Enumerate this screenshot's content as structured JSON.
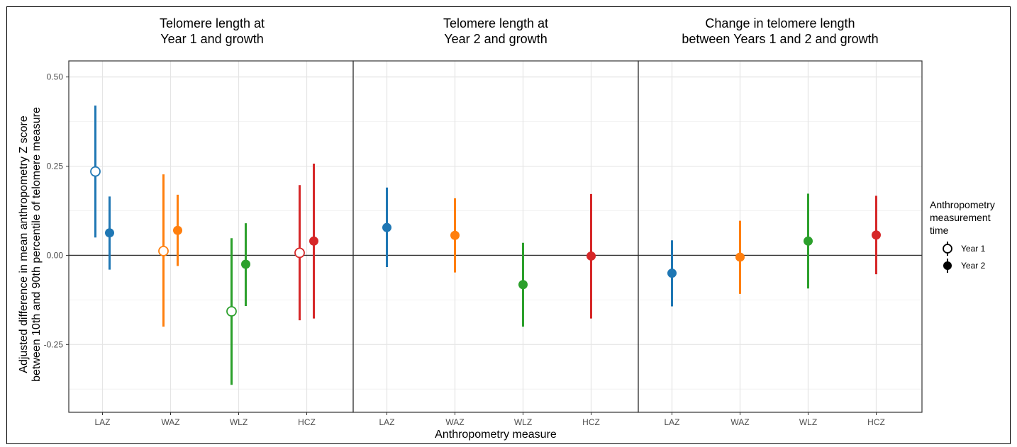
{
  "chart_data": {
    "type": "scatter",
    "xlabel": "Anthropometry measure",
    "ylabel_lines": [
      "Adjusted difference in mean anthropometry Z score",
      "between 10th and 90th percentile of telomere measure"
    ],
    "categories": [
      "LAZ",
      "WAZ",
      "WLZ",
      "HCZ"
    ],
    "ylim": [
      -0.44,
      0.545
    ],
    "yticks": [
      0.5,
      0.25,
      0.0,
      -0.25
    ],
    "ytick_labels": [
      "0.50",
      "0.25",
      "0.00",
      "-0.25"
    ],
    "colors": {
      "LAZ": "#1f77b4",
      "WAZ": "#ff7f0e",
      "WLZ": "#2ca02c",
      "HCZ": "#d62728"
    },
    "legend": {
      "title_lines": [
        "Anthropometry",
        "measurement",
        "time"
      ],
      "items": [
        {
          "label": "Year 1",
          "marker": "open-circle"
        },
        {
          "label": "Year 2",
          "marker": "filled-circle"
        }
      ]
    },
    "panels": [
      {
        "title_lines": [
          "Telomere length at",
          "Year 1 and growth"
        ],
        "points": [
          {
            "category": "LAZ",
            "time": "Year 1",
            "estimate": 0.235,
            "lower": 0.05,
            "upper": 0.42
          },
          {
            "category": "LAZ",
            "time": "Year 2",
            "estimate": 0.063,
            "lower": -0.04,
            "upper": 0.165
          },
          {
            "category": "WAZ",
            "time": "Year 1",
            "estimate": 0.012,
            "lower": -0.2,
            "upper": 0.227
          },
          {
            "category": "WAZ",
            "time": "Year 2",
            "estimate": 0.07,
            "lower": -0.03,
            "upper": 0.17
          },
          {
            "category": "WLZ",
            "time": "Year 1",
            "estimate": -0.157,
            "lower": -0.363,
            "upper": 0.048
          },
          {
            "category": "WLZ",
            "time": "Year 2",
            "estimate": -0.025,
            "lower": -0.142,
            "upper": 0.09
          },
          {
            "category": "HCZ",
            "time": "Year 1",
            "estimate": 0.007,
            "lower": -0.182,
            "upper": 0.197
          },
          {
            "category": "HCZ",
            "time": "Year 2",
            "estimate": 0.04,
            "lower": -0.177,
            "upper": 0.257
          }
        ]
      },
      {
        "title_lines": [
          "Telomere length at",
          "Year 2 and growth"
        ],
        "points": [
          {
            "category": "LAZ",
            "time": "Year 2",
            "estimate": 0.078,
            "lower": -0.033,
            "upper": 0.19
          },
          {
            "category": "WAZ",
            "time": "Year 2",
            "estimate": 0.056,
            "lower": -0.048,
            "upper": 0.16
          },
          {
            "category": "WLZ",
            "time": "Year 2",
            "estimate": -0.082,
            "lower": -0.2,
            "upper": 0.035
          },
          {
            "category": "HCZ",
            "time": "Year 2",
            "estimate": -0.002,
            "lower": -0.177,
            "upper": 0.172
          }
        ]
      },
      {
        "title_lines": [
          "Change in telomere length",
          "between Years 1 and 2 and growth"
        ],
        "points": [
          {
            "category": "LAZ",
            "time": "Year 2",
            "estimate": -0.05,
            "lower": -0.143,
            "upper": 0.042
          },
          {
            "category": "WAZ",
            "time": "Year 2",
            "estimate": -0.005,
            "lower": -0.108,
            "upper": 0.097
          },
          {
            "category": "WLZ",
            "time": "Year 2",
            "estimate": 0.04,
            "lower": -0.093,
            "upper": 0.173
          },
          {
            "category": "HCZ",
            "time": "Year 2",
            "estimate": 0.057,
            "lower": -0.053,
            "upper": 0.167
          }
        ]
      }
    ],
    "grid": true,
    "reference_line": 0.0
  }
}
